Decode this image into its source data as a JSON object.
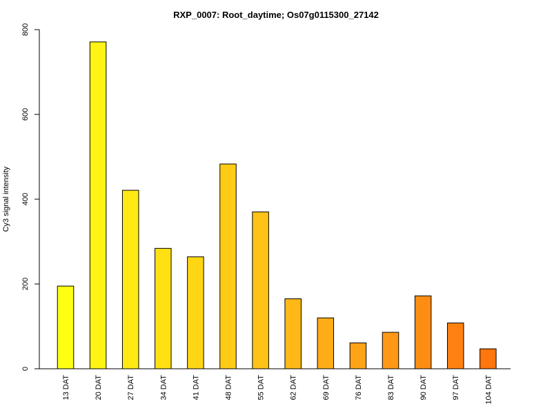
{
  "chart_data": {
    "type": "bar",
    "title": "RXP_0007: Root_daytime; Os07g0115300_27142",
    "xlabel": "",
    "ylabel": "Cy3 signal intensity",
    "categories": [
      "13 DAT",
      "20 DAT",
      "27 DAT",
      "34 DAT",
      "41 DAT",
      "48 DAT",
      "55 DAT",
      "62 DAT",
      "69 DAT",
      "76 DAT",
      "83 DAT",
      "90 DAT",
      "97 DAT",
      "104 DAT"
    ],
    "values": [
      195,
      771,
      421,
      284,
      264,
      483,
      370,
      165,
      120,
      61,
      86,
      172,
      108,
      47
    ],
    "bar_colors": [
      "#ffff14",
      "#fff413",
      "#ffea13",
      "#ffe013",
      "#ffd614",
      "#ffcc15",
      "#ffc216",
      "#ffb817",
      "#ffad17",
      "#ffa317",
      "#ff9816",
      "#ff8d14",
      "#ff8112",
      "#ff750e"
    ],
    "yticks": [
      0,
      200,
      400,
      600,
      800
    ],
    "ylim": [
      0,
      800
    ],
    "grid": false,
    "legend": "none"
  }
}
